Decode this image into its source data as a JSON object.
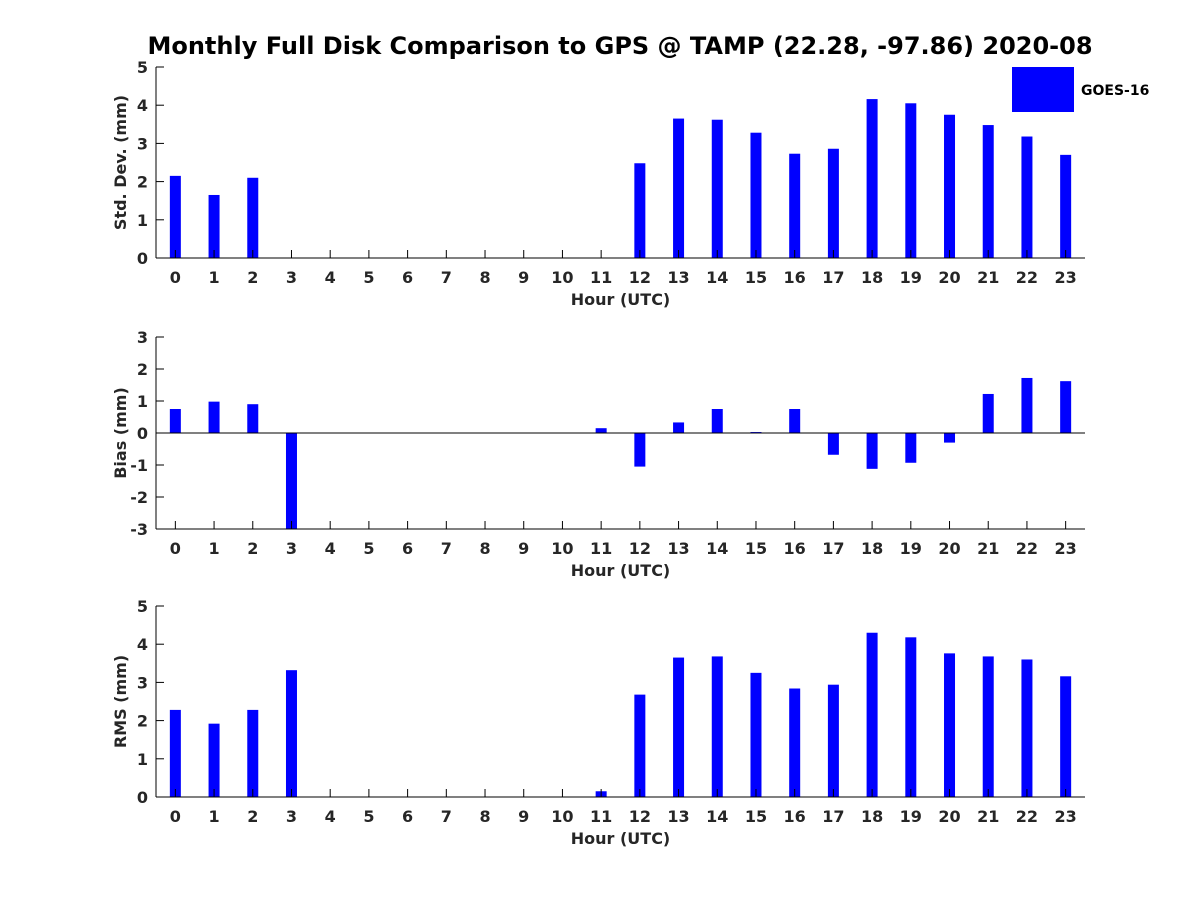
{
  "figure_title": "Monthly Full Disk Comparison to GPS @ TAMP (22.28, -97.86) 2020-08",
  "legend": {
    "label": "GOES-16",
    "color": "#0000ff"
  },
  "chart_data": [
    {
      "type": "bar",
      "id": "stddev",
      "ylabel": "Std. Dev. (mm)",
      "xlabel": "Hour (UTC)",
      "x": [
        0,
        1,
        2,
        3,
        4,
        5,
        6,
        7,
        8,
        9,
        10,
        11,
        12,
        13,
        14,
        15,
        16,
        17,
        18,
        19,
        20,
        21,
        22,
        23
      ],
      "xtick_labels": [
        "0",
        "1",
        "2",
        "3",
        "4",
        "5",
        "6",
        "7",
        "8",
        "9",
        "10",
        "11",
        "12",
        "13",
        "14",
        "15",
        "16",
        "17",
        "18",
        "19",
        "20",
        "21",
        "22",
        "23"
      ],
      "ylim": [
        0,
        5
      ],
      "yticks": [
        0,
        1,
        2,
        3,
        4,
        5
      ],
      "ytick_labels": [
        "0",
        "1",
        "2",
        "3",
        "4",
        "5"
      ],
      "series": [
        {
          "name": "GOES-16",
          "color": "#0000ff",
          "values": [
            2.15,
            1.65,
            2.1,
            null,
            null,
            null,
            null,
            null,
            null,
            null,
            null,
            null,
            2.48,
            3.65,
            3.62,
            3.28,
            2.73,
            2.86,
            4.16,
            4.05,
            3.75,
            3.48,
            3.18,
            2.7
          ]
        }
      ]
    },
    {
      "type": "bar",
      "id": "bias",
      "ylabel": "Bias (mm)",
      "xlabel": "Hour (UTC)",
      "x": [
        0,
        1,
        2,
        3,
        4,
        5,
        6,
        7,
        8,
        9,
        10,
        11,
        12,
        13,
        14,
        15,
        16,
        17,
        18,
        19,
        20,
        21,
        22,
        23
      ],
      "xtick_labels": [
        "0",
        "1",
        "2",
        "3",
        "4",
        "5",
        "6",
        "7",
        "8",
        "9",
        "10",
        "11",
        "12",
        "13",
        "14",
        "15",
        "16",
        "17",
        "18",
        "19",
        "20",
        "21",
        "22",
        "23"
      ],
      "ylim": [
        -3,
        3
      ],
      "yticks": [
        -3,
        -2,
        -1,
        0,
        1,
        2,
        3
      ],
      "ytick_labels": [
        "-3",
        "-2",
        "-1",
        "0",
        "1",
        "2",
        "3"
      ],
      "zero_line": true,
      "series": [
        {
          "name": "GOES-16",
          "color": "#0000ff",
          "values": [
            0.75,
            0.98,
            0.9,
            -3.0,
            null,
            null,
            null,
            null,
            null,
            null,
            null,
            0.15,
            -1.05,
            0.33,
            0.75,
            0.03,
            0.75,
            -0.68,
            -1.12,
            -0.93,
            -0.3,
            1.22,
            1.72,
            1.62
          ]
        }
      ]
    },
    {
      "type": "bar",
      "id": "rms",
      "ylabel": "RMS (mm)",
      "xlabel": "Hour (UTC)",
      "x": [
        0,
        1,
        2,
        3,
        4,
        5,
        6,
        7,
        8,
        9,
        10,
        11,
        12,
        13,
        14,
        15,
        16,
        17,
        18,
        19,
        20,
        21,
        22,
        23
      ],
      "xtick_labels": [
        "0",
        "1",
        "2",
        "3",
        "4",
        "5",
        "6",
        "7",
        "8",
        "9",
        "10",
        "11",
        "12",
        "13",
        "14",
        "15",
        "16",
        "17",
        "18",
        "19",
        "20",
        "21",
        "22",
        "23"
      ],
      "ylim": [
        0,
        5
      ],
      "yticks": [
        0,
        1,
        2,
        3,
        4,
        5
      ],
      "ytick_labels": [
        "0",
        "1",
        "2",
        "3",
        "4",
        "5"
      ],
      "series": [
        {
          "name": "GOES-16",
          "color": "#0000ff",
          "values": [
            2.28,
            1.92,
            2.28,
            3.32,
            null,
            null,
            null,
            null,
            null,
            null,
            null,
            0.15,
            2.68,
            3.65,
            3.68,
            3.25,
            2.84,
            2.94,
            4.3,
            4.18,
            3.76,
            3.68,
            3.6,
            3.16
          ]
        }
      ]
    }
  ]
}
